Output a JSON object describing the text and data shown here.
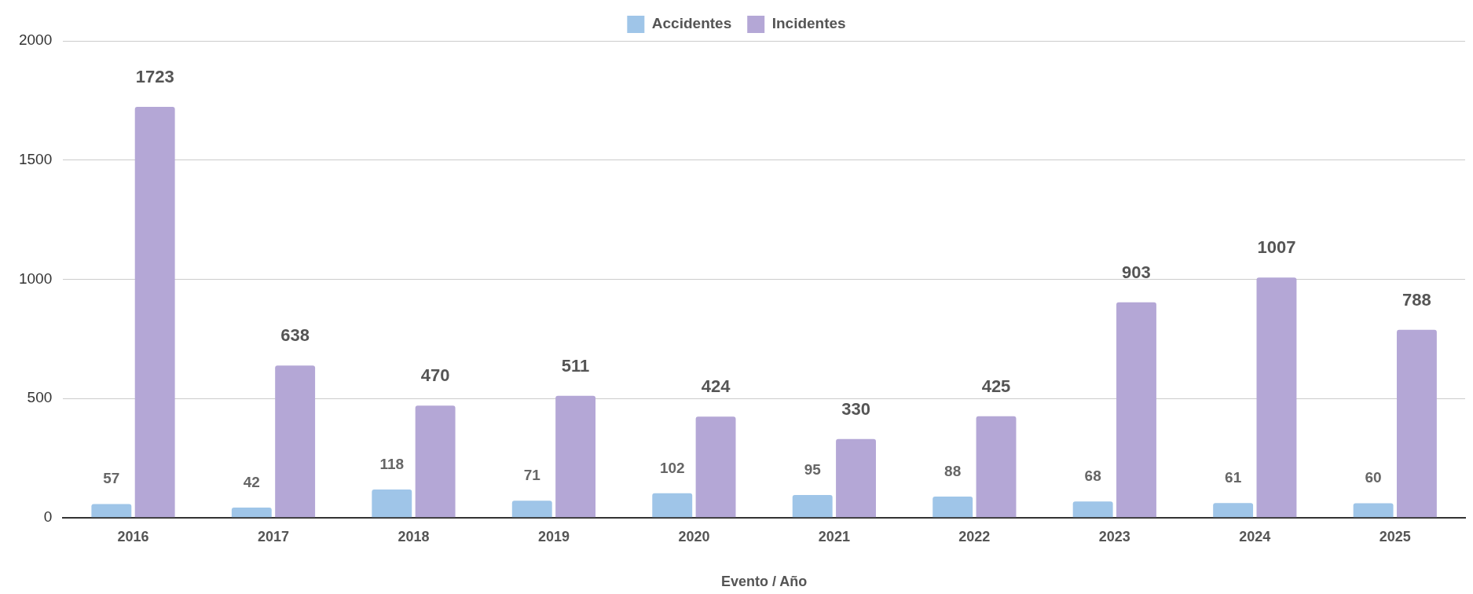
{
  "chart_data": {
    "type": "bar",
    "xlabel": "Evento / Año",
    "categories": [
      "2016",
      "2017",
      "2018",
      "2019",
      "2020",
      "2021",
      "2022",
      "2023",
      "2024",
      "2025"
    ],
    "series": [
      {
        "name": "Accidentes",
        "color": "#9fc5e8",
        "values": [
          57,
          42,
          118,
          71,
          102,
          95,
          88,
          68,
          61,
          60
        ]
      },
      {
        "name": "Incidentes",
        "color": "#b4a7d6",
        "values": [
          1723,
          638,
          470,
          511,
          424,
          330,
          425,
          903,
          1007,
          788
        ]
      }
    ],
    "ylim": [
      0,
      2000
    ],
    "yticks": [
      0,
      500,
      1000,
      1500,
      2000
    ],
    "grid": "y",
    "legend": "top",
    "data_labels": true
  }
}
